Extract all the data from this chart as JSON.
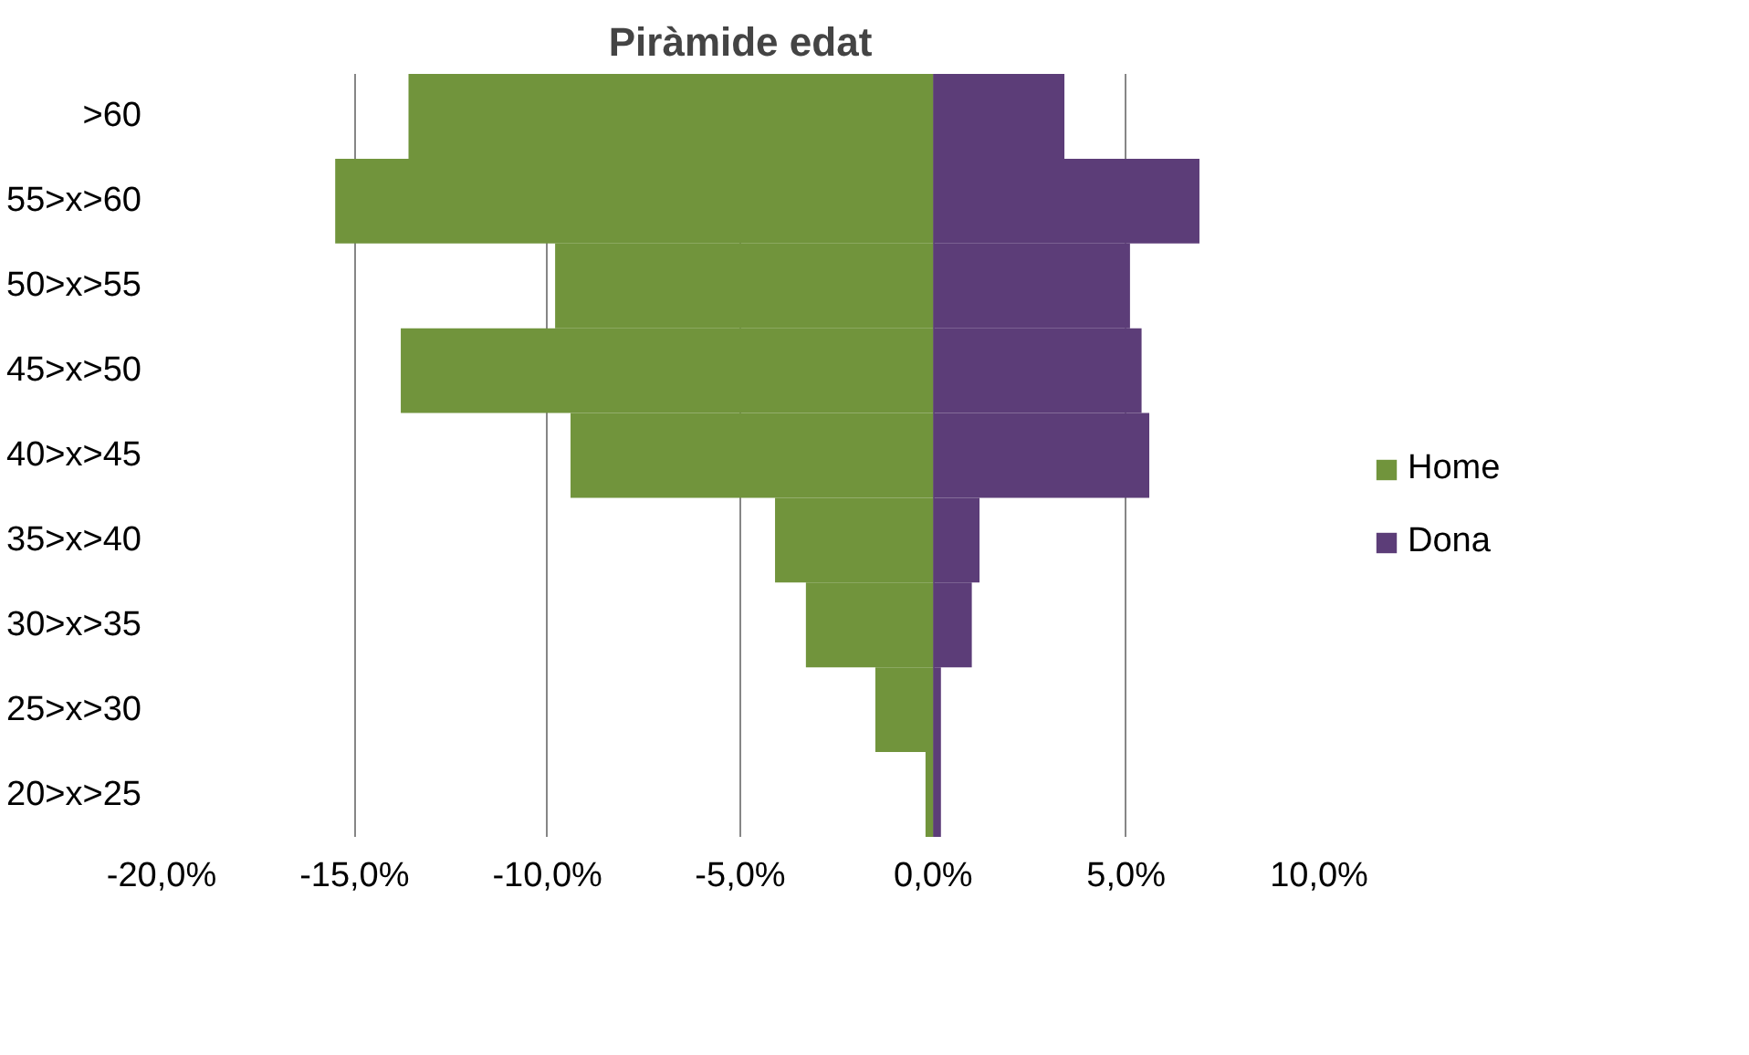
{
  "chart_data": {
    "type": "bar",
    "orientation": "horizontal",
    "title": "Piràmide edat",
    "categories": [
      ">60",
      "55>x>60",
      "50>x>55",
      "45>x>50",
      "40>x>45",
      "35>x>40",
      "30>x>35",
      "25>x>30",
      "20>x>25"
    ],
    "series": [
      {
        "name": "Home",
        "color": "#71943c",
        "values": [
          -13.6,
          -15.5,
          -9.8,
          -13.8,
          -9.4,
          -4.1,
          -3.3,
          -1.5,
          -0.2
        ]
      },
      {
        "name": "Dona",
        "color": "#5c3d78",
        "values": [
          3.4,
          6.9,
          5.1,
          5.4,
          5.6,
          1.2,
          1.0,
          0.2,
          0.2
        ]
      }
    ],
    "xlim": [
      -20,
      10
    ],
    "xticks": [
      {
        "value": -20,
        "label": "-20,0%"
      },
      {
        "value": -15,
        "label": "-15,0%"
      },
      {
        "value": -10,
        "label": "-10,0%"
      },
      {
        "value": -5,
        "label": "-5,0%"
      },
      {
        "value": 0,
        "label": "0,0%"
      },
      {
        "value": 5,
        "label": "5,0%"
      },
      {
        "value": 10,
        "label": "10,0%"
      }
    ],
    "grid": "x",
    "legend": "right",
    "stacked": true
  }
}
